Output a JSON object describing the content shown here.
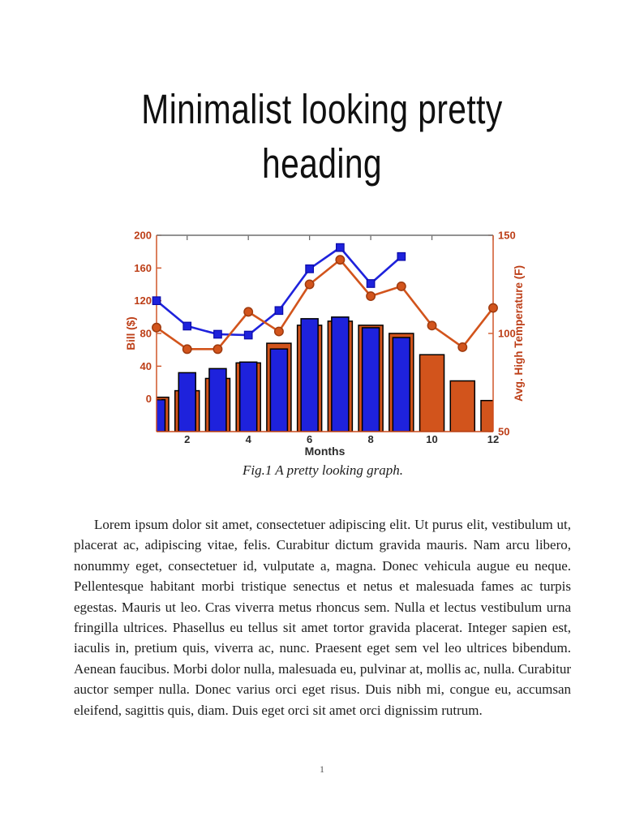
{
  "page": {
    "heading_line1": "Minimalist looking pretty",
    "heading_line2": "heading",
    "figure_caption": "Fig.1 A pretty looking graph.",
    "body_paragraph": "Lorem ipsum dolor sit amet, consectetuer adipiscing elit. Ut purus elit, vestibulum ut, placerat ac, adipiscing vitae, felis. Curabitur dictum gravida mauris. Nam arcu libero, nonummy eget, consectetuer id, vulputate a, magna. Donec vehicula augue eu neque. Pellentesque habitant morbi tristique senectus et netus et malesuada fames ac turpis egestas. Mauris ut leo. Cras viverra metus rhoncus sem. Nulla et lectus vestibulum urna fringilla ultrices. Phasellus eu tellus sit amet tortor gravida placerat. Integer sapien est, iaculis in, pretium quis, viverra ac, nunc. Praesent eget sem vel leo ultrices bibendum. Aenean faucibus. Morbi dolor nulla, malesuada eu, pulvinar at, mollis ac, nulla. Curabitur auctor semper nulla. Donec varius orci eget risus. Duis nibh mi, congue eu, accumsan eleifend, sagittis quis, diam. Duis eget orci sit amet orci dignissim rutrum.",
    "page_number": "1"
  },
  "chart_data": {
    "type": "combo bar+line, dual y-axis",
    "title": "",
    "grid": false,
    "legend": false,
    "bar_baseline": -40,
    "months": [
      1,
      2,
      3,
      4,
      5,
      6,
      7,
      8,
      9,
      10,
      11,
      12
    ],
    "x_axis": {
      "label": "Months",
      "range": [
        1,
        12
      ],
      "ticks": [
        2,
        4,
        6,
        8,
        10,
        12
      ]
    },
    "left_axis": {
      "label": "Bill ($)",
      "range": [
        -40,
        200
      ],
      "ticks": [
        0,
        40,
        80,
        120,
        160,
        200
      ]
    },
    "right_axis": {
      "label": "Avg. High Temperature (F)",
      "range": [
        50,
        150
      ],
      "ticks": [
        50,
        100,
        150
      ]
    },
    "series": [
      {
        "name": "bill-bars-orange",
        "type": "bar",
        "axis": "left",
        "values": [
          2,
          10,
          25,
          44,
          68,
          90,
          95,
          90,
          80,
          54,
          22,
          -2
        ]
      },
      {
        "name": "bill-bars-blue",
        "type": "bar",
        "axis": "left",
        "values": [
          -1,
          32,
          37,
          45,
          61,
          98,
          100,
          87,
          75,
          null,
          null,
          null
        ]
      },
      {
        "name": "bill-line-blue",
        "type": "line",
        "axis": "left",
        "marker": "square",
        "values": [
          120,
          89,
          79,
          78,
          108,
          159,
          185,
          141,
          174,
          null,
          null,
          null
        ]
      },
      {
        "name": "temp-line-orange",
        "type": "line",
        "axis": "right",
        "marker": "circle",
        "values": [
          103,
          92,
          92,
          111,
          101,
          125,
          137.5,
          119,
          124,
          104,
          93,
          113
        ]
      }
    ],
    "colors": {
      "blue": "#1E22DC",
      "blue_edge": "#0A0AA8",
      "orange": "#D2541C",
      "orange_edge": "#9E3A0E",
      "bar_edge": "#000000",
      "axis_orange": "#CC4A1A",
      "tick_label_orange": "#BD3F18",
      "x_label_color": "#2B2B2B",
      "box_top": "#6E6E6E"
    }
  }
}
